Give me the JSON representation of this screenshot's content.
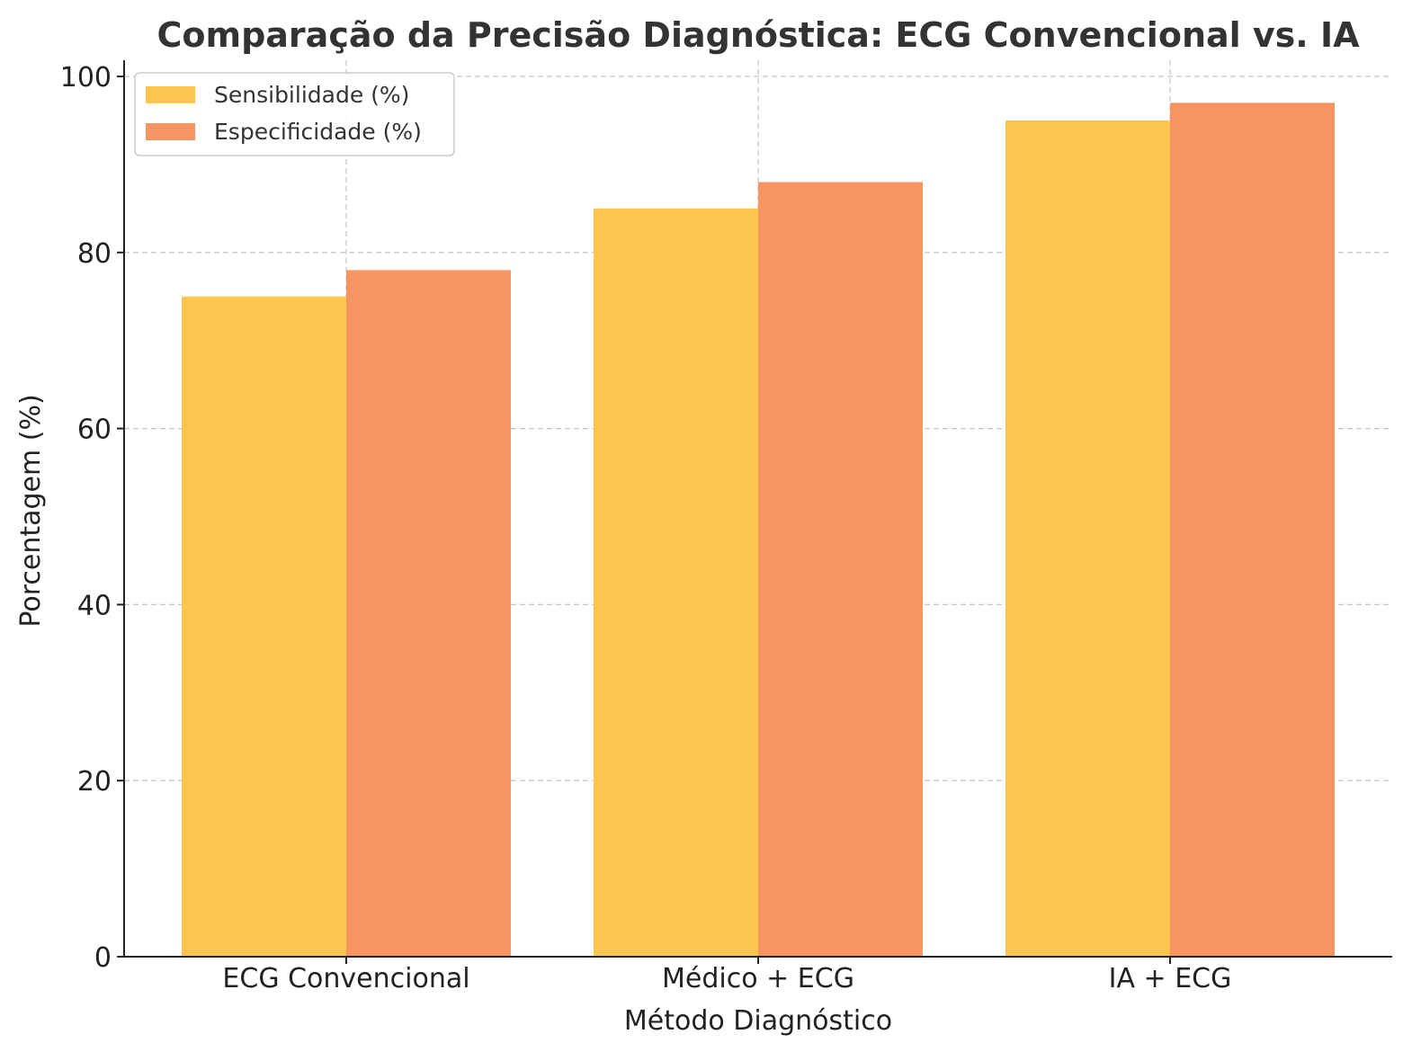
{
  "chart_data": {
    "type": "bar",
    "title": "Comparação da Precisão Diagnóstica: ECG Convencional vs. IA",
    "xlabel": "Método Diagnóstico",
    "ylabel": "Porcentagem (%)",
    "categories": [
      "ECG Convencional",
      "Médico + ECG",
      "IA + ECG"
    ],
    "series": [
      {
        "name": "Sensibilidade (%)",
        "values": [
          75,
          85,
          95
        ],
        "color": "#fdc54e"
      },
      {
        "name": "Especificidade (%)",
        "values": [
          78,
          88,
          97
        ],
        "color": "#f69563"
      }
    ],
    "ylim": [
      0,
      100
    ],
    "yticks": [
      0,
      20,
      40,
      60,
      80,
      100
    ],
    "grid": true,
    "legend_position": "top-left"
  }
}
